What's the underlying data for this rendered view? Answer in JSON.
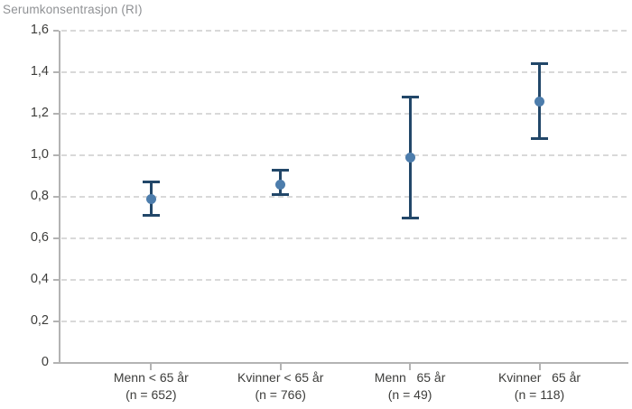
{
  "chart_data": {
    "type": "scatter",
    "subtype": "point-estimates-with-error-bars",
    "title": "Serumkonsentrasjon (RI)",
    "ylabel": "Serumkonsentrasjon (RI)",
    "xlabel": "",
    "ylim": [
      0,
      1.6
    ],
    "ytick_step": 0.2,
    "ytick_labels": [
      "0",
      "0,2",
      "0,4",
      "0,6",
      "0,8",
      "1,0",
      "1,2",
      "1,4",
      "1,6"
    ],
    "grid": "horizontal dashed gridlines on, legend none",
    "categories": [
      "Menn < 65 år",
      "Kvinner < 65 år",
      "Menn   65 år",
      "Kvinner   65 år"
    ],
    "category_sublabels": [
      "(n = 652)",
      "(n = 766)",
      "(n = 49)",
      "(n = 118)"
    ],
    "points": [
      {
        "group": "Menn < 65 år",
        "n": 652,
        "mean": 0.79,
        "ci_low": 0.71,
        "ci_high": 0.87
      },
      {
        "group": "Kvinner < 65 år",
        "n": 766,
        "mean": 0.86,
        "ci_low": 0.81,
        "ci_high": 0.93
      },
      {
        "group": "Menn   65 år",
        "n": 49,
        "mean": 0.99,
        "ci_low": 0.7,
        "ci_high": 1.28
      },
      {
        "group": "Kvinner   65 år",
        "n": 118,
        "mean": 1.26,
        "ci_low": 1.08,
        "ci_high": 1.44
      }
    ],
    "colors": {
      "point": "#4d7dac",
      "error_bar": "#224769",
      "axis": "#b3b3b3",
      "gridline": "#d9d9d9",
      "tick_text": "#3d3d3b",
      "title_text": "#8f9194"
    }
  }
}
